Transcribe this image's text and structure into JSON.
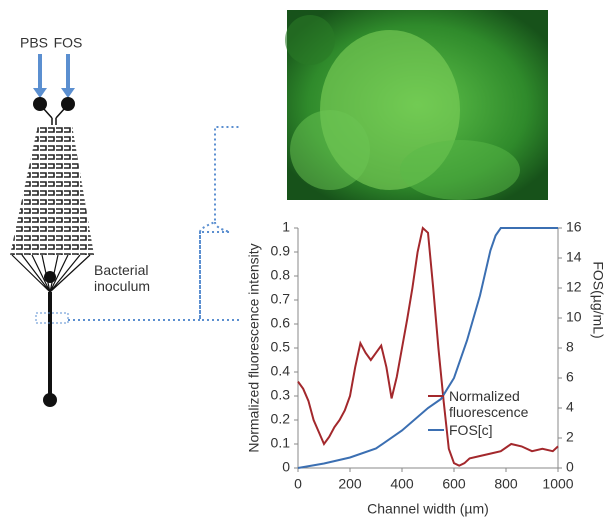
{
  "diagram": {
    "inlets": [
      "PBS",
      "FOS"
    ],
    "annotation": "Bacterial inoculum"
  },
  "chart_data": {
    "type": "line",
    "xlabel": "Channel width (µm)",
    "ylabel": "Normalized fluorescence intensity",
    "y2label": "FOS(µg/mL)",
    "xlim": [
      0,
      1000
    ],
    "xticks": [
      0,
      200,
      400,
      600,
      800,
      1000
    ],
    "ylim": [
      0,
      1
    ],
    "yticks": [
      0,
      0.1,
      0.2,
      0.3,
      0.4,
      0.5,
      0.6,
      0.7,
      0.8,
      0.9,
      1
    ],
    "y2lim": [
      0,
      16
    ],
    "y2ticks": [
      0,
      2,
      4,
      6,
      8,
      10,
      12,
      14,
      16
    ],
    "legend": "lower right",
    "series": [
      {
        "name": "Normalized fluorescence",
        "color": "#a3282c",
        "x": [
          0,
          20,
          40,
          60,
          80,
          100,
          120,
          140,
          160,
          180,
          200,
          220,
          240,
          260,
          280,
          300,
          320,
          340,
          360,
          380,
          400,
          420,
          440,
          460,
          480,
          500,
          520,
          540,
          560,
          580,
          600,
          620,
          640,
          660,
          700,
          740,
          780,
          820,
          860,
          900,
          940,
          980,
          1000
        ],
        "values": [
          0.36,
          0.33,
          0.28,
          0.2,
          0.15,
          0.1,
          0.13,
          0.17,
          0.2,
          0.24,
          0.3,
          0.42,
          0.52,
          0.48,
          0.45,
          0.48,
          0.51,
          0.42,
          0.29,
          0.38,
          0.5,
          0.62,
          0.75,
          0.9,
          1.0,
          0.98,
          0.75,
          0.5,
          0.28,
          0.08,
          0.02,
          0.01,
          0.02,
          0.04,
          0.05,
          0.06,
          0.07,
          0.1,
          0.09,
          0.07,
          0.08,
          0.07,
          0.09
        ]
      },
      {
        "name": "FOS[c]",
        "color": "#3b6fb2",
        "axis": "y2",
        "x": [
          0,
          100,
          200,
          300,
          400,
          500,
          550,
          600,
          650,
          700,
          740,
          760,
          780,
          1000
        ],
        "values": [
          0,
          0.3,
          0.7,
          1.3,
          2.5,
          4,
          4.6,
          6,
          8.5,
          11.5,
          14.5,
          15.5,
          16,
          16
        ]
      }
    ]
  }
}
